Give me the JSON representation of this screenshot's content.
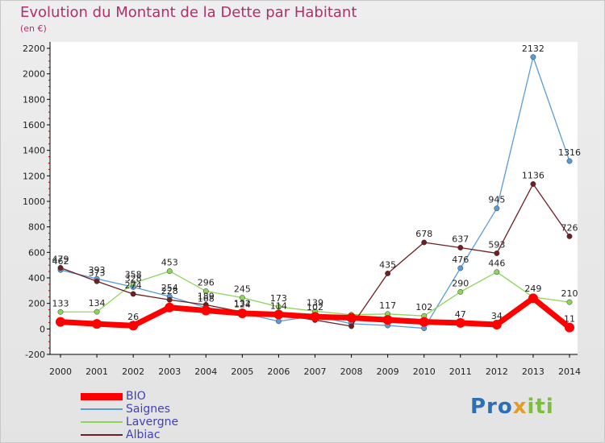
{
  "header": {
    "title": "Evolution du Montant de la Dette par Habitant",
    "unit": "(en €)"
  },
  "colors": {
    "BIO": "#ff0000",
    "Saignes": "#5b9bd5",
    "Lavergne": "#8ed45c",
    "Albiac": "#6e1f22",
    "title": "#b0306a",
    "legend_text": "#4040c0"
  },
  "logo": {
    "text": "Proxiti",
    "p1": "Pro",
    "p2": "x",
    "p3": "iti"
  },
  "chart_data": {
    "type": "line",
    "title": "Evolution du Montant de la Dette par Habitant",
    "ylabel": "(en €)",
    "xlabel": "",
    "x": [
      "2000",
      "2001",
      "2002",
      "2003",
      "2004",
      "2005",
      "2006",
      "2007",
      "2008",
      "2009",
      "2010",
      "2011",
      "2012",
      "2013",
      "2014"
    ],
    "ylim": [
      -200,
      2200
    ],
    "yticks": [
      -200,
      0,
      200,
      400,
      600,
      800,
      1000,
      1200,
      1400,
      1600,
      1800,
      2000,
      2200
    ],
    "grid": false,
    "legend_position": "bottom-left",
    "series": [
      {
        "name": "BIO",
        "values": [
          55,
          39,
          26,
          168,
          144,
          122,
          113,
          95,
          87,
          71,
          55,
          47,
          34,
          240,
          11
        ],
        "labels": [
          "",
          "",
          "26",
          "",
          "",
          "",
          "",
          "",
          "",
          "",
          "",
          "47",
          "34",
          "",
          "11"
        ]
      },
      {
        "name": "Saignes",
        "values": [
          462,
          393,
          328,
          254,
          168,
          124,
          60,
          102,
          41,
          27,
          5,
          476,
          945,
          2132,
          1316
        ],
        "labels": [
          "462",
          "393",
          "328",
          "254",
          "168",
          "124",
          "",
          "102",
          "",
          "",
          "",
          "476",
          "945",
          "2132",
          "1316"
        ]
      },
      {
        "name": "Lavergne",
        "values": [
          133,
          134,
          358,
          453,
          296,
          245,
          173,
          139,
          111,
          117,
          102,
          290,
          446,
          249,
          210
        ],
        "labels": [
          "133",
          "134",
          "358",
          "453",
          "296",
          "245",
          "173",
          "139",
          "",
          "117",
          "102",
          "290",
          "446",
          "249",
          "210"
        ]
      },
      {
        "name": "Albiac",
        "values": [
          479,
          373,
          274,
          228,
          189,
          132,
          114,
          69,
          21,
          435,
          678,
          637,
          593,
          1136,
          726
        ],
        "labels": [
          "479",
          "373",
          "274",
          "228",
          "189",
          "132",
          "114",
          "",
          "",
          "435",
          "678",
          "637",
          "593",
          "1136",
          "726"
        ]
      }
    ]
  }
}
